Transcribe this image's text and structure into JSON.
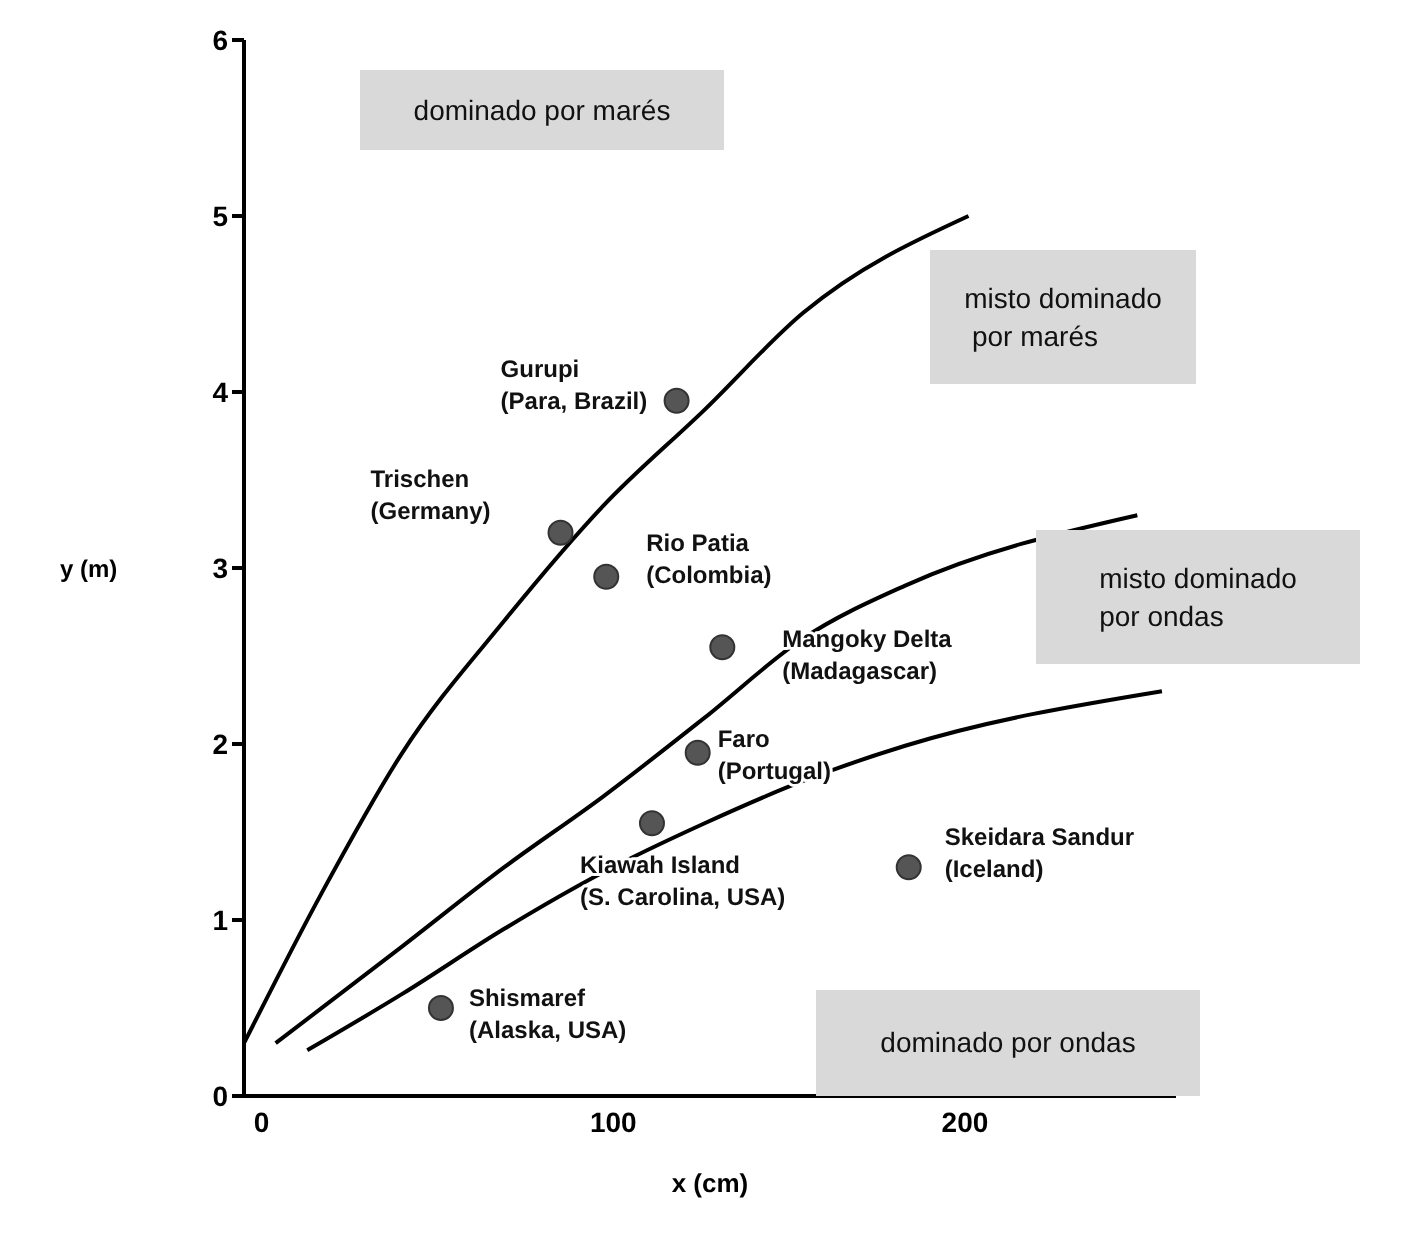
{
  "chart_data": {
    "type": "scatter",
    "xlabel": "x (cm)",
    "ylabel": "y (m)",
    "xlim": [
      -5,
      260
    ],
    "ylim": [
      0,
      6
    ],
    "xticks": [
      0,
      100,
      200
    ],
    "yticks": [
      0,
      1,
      2,
      3,
      4,
      5,
      6
    ],
    "grid": false,
    "legend": false,
    "series": [
      {
        "type": "line",
        "marker": "none",
        "color": "#000000",
        "x": [
          -5,
          17,
          40,
          69,
          97,
          126,
          154,
          201
        ],
        "values": [
          0.3,
          1.15,
          1.95,
          2.7,
          3.35,
          3.9,
          4.45,
          5.0
        ]
      },
      {
        "type": "line",
        "marker": "none",
        "color": "#000000",
        "x": [
          4,
          40,
          69,
          97,
          126,
          154,
          183,
          249
        ],
        "values": [
          0.3,
          0.85,
          1.3,
          1.7,
          2.15,
          2.6,
          2.9,
          3.3
        ]
      },
      {
        "type": "line",
        "marker": "none",
        "color": "#000000",
        "x": [
          13,
          40,
          69,
          97,
          126,
          154,
          183,
          256
        ],
        "values": [
          0.26,
          0.58,
          0.95,
          1.27,
          1.55,
          1.79,
          1.99,
          2.3
        ]
      },
      {
        "marker": "circle",
        "color": "#555555",
        "x": [
          118,
          85,
          98,
          131,
          124,
          111,
          184,
          51
        ],
        "values": [
          3.95,
          3.2,
          2.95,
          2.55,
          1.95,
          1.55,
          1.3,
          0.5
        ]
      }
    ],
    "annotations": [
      {
        "text": "Gurupi\n(Para, Brazil)",
        "x": 118,
        "y": 3.95
      },
      {
        "text": "Trischen\n(Germany)",
        "x": 85,
        "y": 3.2
      },
      {
        "text": "Rio Patia\n(Colombia)",
        "x": 98,
        "y": 2.95
      },
      {
        "text": "Mangoky Delta\n(Madagascar)",
        "x": 131,
        "y": 2.55
      },
      {
        "text": "Faro\n(Portugal)",
        "x": 124,
        "y": 1.95
      },
      {
        "text": "Kiawah Island\n(S. Carolina, USA)",
        "x": 111,
        "y": 1.55
      },
      {
        "text": "Skeidara Sandur\n(Iceland)",
        "x": 184,
        "y": 1.3
      },
      {
        "text": "Shismaref\n(Alaska, USA)",
        "x": 51,
        "y": 0.5
      },
      "dominado por marés",
      "misto dominado\n por marés",
      "misto dominado\npor ondas",
      "dominado por ondas"
    ]
  }
}
